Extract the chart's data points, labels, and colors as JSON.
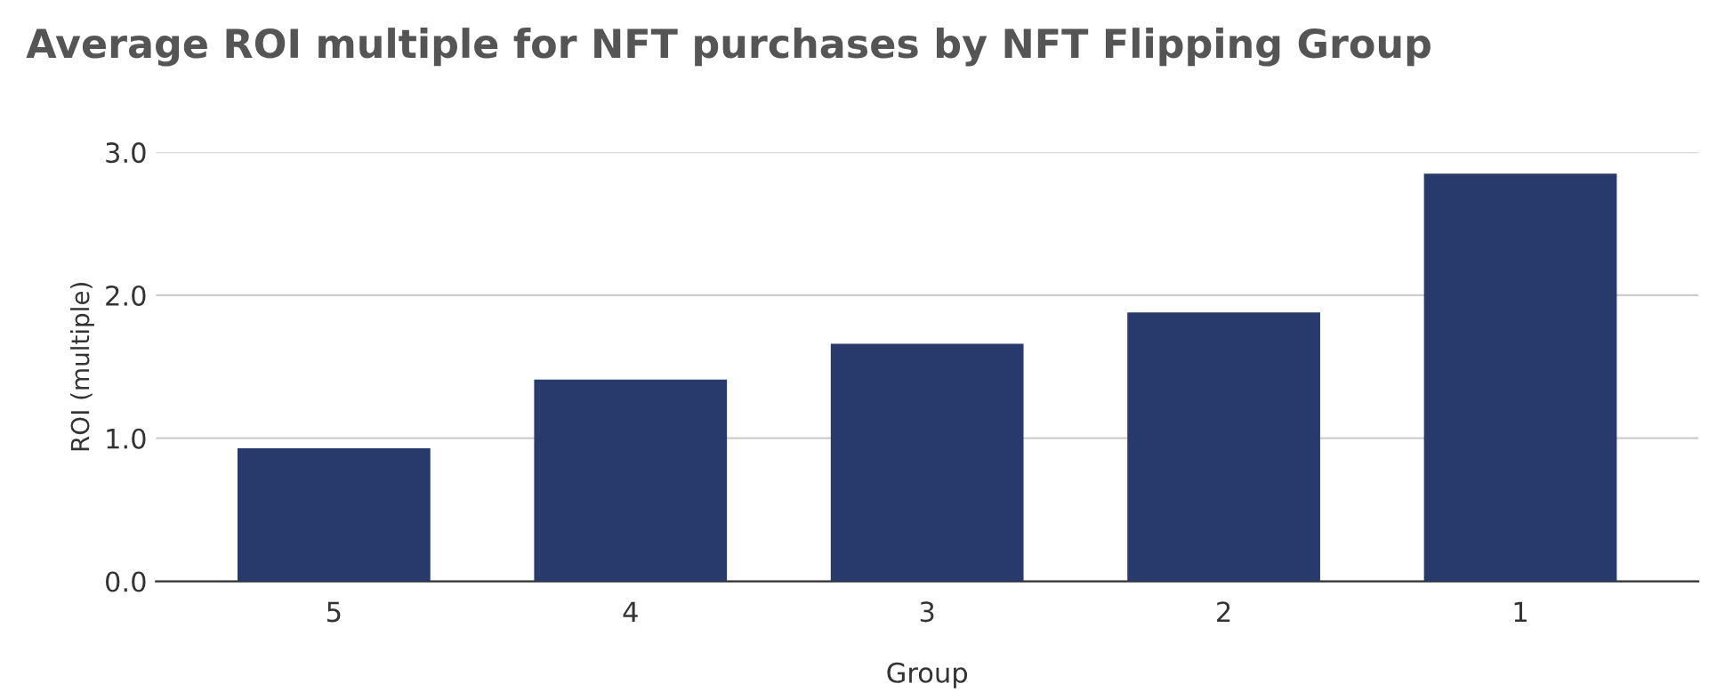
{
  "chart_data": {
    "type": "bar",
    "title": "Average ROI multiple for NFT purchases by NFT Flipping Group",
    "categories": [
      "5",
      "4",
      "3",
      "2",
      "1"
    ],
    "values": [
      0.93,
      1.41,
      1.66,
      1.88,
      2.85
    ],
    "color": "#283a6b",
    "xlabel": "Group",
    "ylabel": "ROI (multiple)",
    "ylim": [
      0,
      3.0
    ],
    "yticks": [
      {
        "value": 0,
        "label": "0.0"
      },
      {
        "value": 1,
        "label": "1.0"
      },
      {
        "value": 2,
        "label": "2.0"
      },
      {
        "value": 3,
        "label": "3.0"
      }
    ],
    "grid": "y"
  }
}
